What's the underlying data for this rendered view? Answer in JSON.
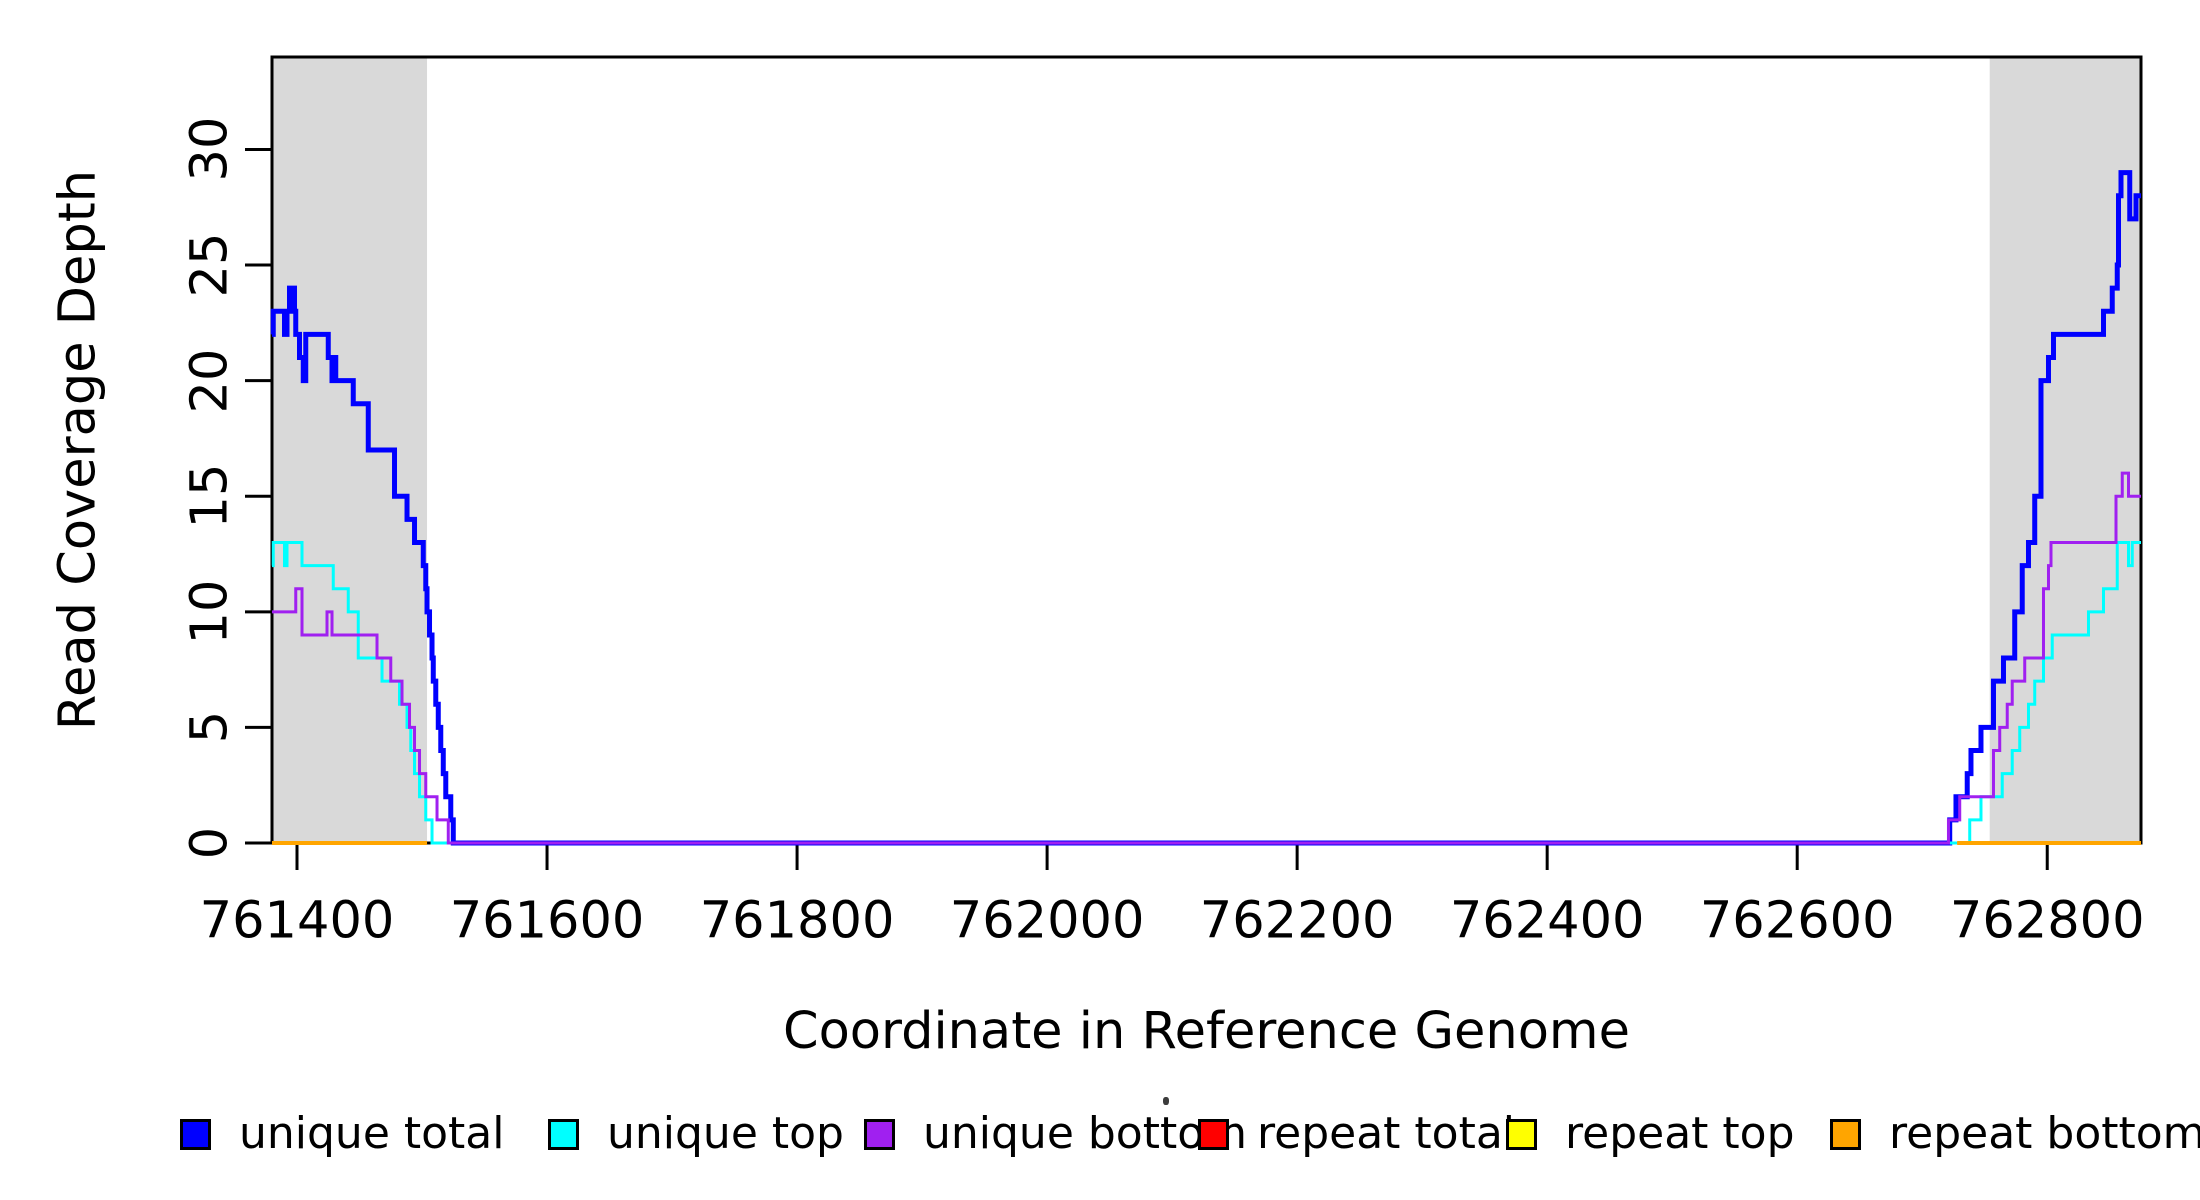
{
  "figure": {
    "background": "#ffffff",
    "x_axis_title": "Coordinate in Reference Genome",
    "y_axis_title": "Read Coverage Depth",
    "artifact_dot": "."
  },
  "chart_data": {
    "type": "line",
    "title": "",
    "xlabel": "Coordinate in Reference Genome",
    "ylabel": "Read Coverage Depth",
    "x_range": [
      761380,
      762875
    ],
    "y_range": [
      0,
      34
    ],
    "x_ticks": [
      761400,
      761600,
      761800,
      762000,
      762200,
      762400,
      762600,
      762800
    ],
    "y_ticks": [
      0,
      5,
      10,
      15,
      20,
      25,
      30
    ],
    "grid": false,
    "legend_position": "bottom",
    "line_style": "step-after",
    "shaded_regions": [
      {
        "name": "left-repeat-region",
        "x0": 761380,
        "x1": 761504,
        "color": "#d9d9d9"
      },
      {
        "name": "right-repeat-region",
        "x0": 762754,
        "x1": 762875,
        "color": "#d9d9d9"
      }
    ],
    "series": [
      {
        "name": "unique-total",
        "label": "unique total",
        "color": "#0000ff",
        "width": 5,
        "segments": [
          [
            [
              761380,
              22
            ],
            [
              761381,
              23
            ],
            [
              761390,
              22
            ],
            [
              761392,
              23
            ],
            [
              761394,
              24
            ],
            [
              761398,
              23
            ],
            [
              761399,
              22
            ],
            [
              761402,
              21
            ],
            [
              761405,
              20
            ],
            [
              761407,
              22
            ],
            [
              761425,
              21
            ],
            [
              761428,
              20
            ],
            [
              761430,
              21
            ],
            [
              761431,
              20
            ],
            [
              761445,
              19
            ],
            [
              761457,
              17
            ],
            [
              761478,
              15
            ],
            [
              761488,
              14
            ],
            [
              761494,
              13
            ],
            [
              761501,
              12
            ],
            [
              761503,
              11
            ],
            [
              761504,
              10
            ],
            [
              761506,
              9
            ],
            [
              761508,
              8
            ],
            [
              761509,
              7
            ],
            [
              761511,
              6
            ],
            [
              761513,
              5
            ],
            [
              761515,
              4
            ],
            [
              761517,
              3
            ],
            [
              761519,
              2
            ],
            [
              761523,
              1
            ],
            [
              761525,
              0
            ],
            [
              762722,
              1
            ],
            [
              762727,
              2
            ],
            [
              762736,
              3
            ],
            [
              762739,
              4
            ],
            [
              762747,
              5
            ],
            [
              762757,
              7
            ],
            [
              762765,
              8
            ],
            [
              762774,
              10
            ],
            [
              762780,
              12
            ],
            [
              762785,
              13
            ],
            [
              762790,
              15
            ],
            [
              762795,
              20
            ],
            [
              762801,
              21
            ],
            [
              762805,
              22
            ],
            [
              762845,
              23
            ],
            [
              762852,
              24
            ],
            [
              762856,
              25
            ],
            [
              762857,
              28
            ],
            [
              762859,
              29
            ],
            [
              762866,
              27
            ],
            [
              762871,
              28
            ],
            [
              762875,
              28
            ]
          ]
        ]
      },
      {
        "name": "unique-top",
        "label": "unique top",
        "color": "#00ffff",
        "width": 3,
        "segments": [
          [
            [
              761380,
              12
            ],
            [
              761381,
              13
            ],
            [
              761390,
              12
            ],
            [
              761392,
              13
            ],
            [
              761404,
              12
            ],
            [
              761429,
              11
            ],
            [
              761441,
              10
            ],
            [
              761449,
              8
            ],
            [
              761468,
              7
            ],
            [
              761482,
              6
            ],
            [
              761488,
              5
            ],
            [
              761491,
              4
            ],
            [
              761494,
              3
            ],
            [
              761498,
              2
            ],
            [
              761503,
              1
            ],
            [
              761508,
              0
            ],
            [
              762738,
              1
            ],
            [
              762747,
              2
            ],
            [
              762764,
              3
            ],
            [
              762772,
              4
            ],
            [
              762778,
              5
            ],
            [
              762785,
              6
            ],
            [
              762790,
              7
            ],
            [
              762797,
              8
            ],
            [
              762804,
              9
            ],
            [
              762833,
              10
            ],
            [
              762845,
              11
            ],
            [
              762856,
              13
            ],
            [
              762865,
              12
            ],
            [
              762868,
              13
            ],
            [
              762875,
              13
            ]
          ]
        ]
      },
      {
        "name": "unique-bottom",
        "label": "unique bottom",
        "color": "#a020f0",
        "width": 3,
        "segments": [
          [
            [
              761380,
              10
            ],
            [
              761399,
              11
            ],
            [
              761404,
              9
            ],
            [
              761424,
              10
            ],
            [
              761428,
              9
            ],
            [
              761464,
              8
            ],
            [
              761475,
              7
            ],
            [
              761484,
              6
            ],
            [
              761490,
              5
            ],
            [
              761494,
              4
            ],
            [
              761498,
              3
            ],
            [
              761503,
              2
            ],
            [
              761512,
              1
            ],
            [
              761521,
              0
            ],
            [
              762721,
              1
            ],
            [
              762730,
              2
            ],
            [
              762757,
              4
            ],
            [
              762762,
              5
            ],
            [
              762768,
              6
            ],
            [
              762772,
              7
            ],
            [
              762782,
              8
            ],
            [
              762797,
              11
            ],
            [
              762801,
              12
            ],
            [
              762803,
              13
            ],
            [
              762855,
              15
            ],
            [
              762860,
              16
            ],
            [
              762865,
              15
            ],
            [
              762875,
              15
            ]
          ]
        ]
      },
      {
        "name": "repeat-total",
        "label": "repeat total",
        "color": "#ff0000",
        "width": 3,
        "segments": [
          [
            [
              761380,
              0
            ],
            [
              761504,
              0
            ]
          ],
          [
            [
              762728,
              0
            ],
            [
              762875,
              0
            ]
          ]
        ]
      },
      {
        "name": "repeat-top",
        "label": "repeat top",
        "color": "#ffff00",
        "width": 3,
        "segments": [
          [
            [
              761380,
              0
            ],
            [
              761504,
              0
            ]
          ],
          [
            [
              762728,
              0
            ],
            [
              762875,
              0
            ]
          ]
        ]
      },
      {
        "name": "repeat-bottom",
        "label": "repeat bottom",
        "color": "#ffa500",
        "width": 4,
        "segments": [
          [
            [
              761380,
              0
            ],
            [
              761504,
              0
            ]
          ],
          [
            [
              762728,
              0
            ],
            [
              762875,
              0
            ]
          ]
        ]
      }
    ]
  },
  "legend": {
    "items": [
      {
        "label": "unique total",
        "color": "#0000ff"
      },
      {
        "label": "unique top",
        "color": "#00ffff"
      },
      {
        "label": "unique bottom",
        "color": "#a020f0"
      },
      {
        "label": "repeat total",
        "color": "#ff0000"
      },
      {
        "label": "repeat top",
        "color": "#ffff00"
      },
      {
        "label": "repeat bottom",
        "color": "#ffa500"
      }
    ]
  }
}
